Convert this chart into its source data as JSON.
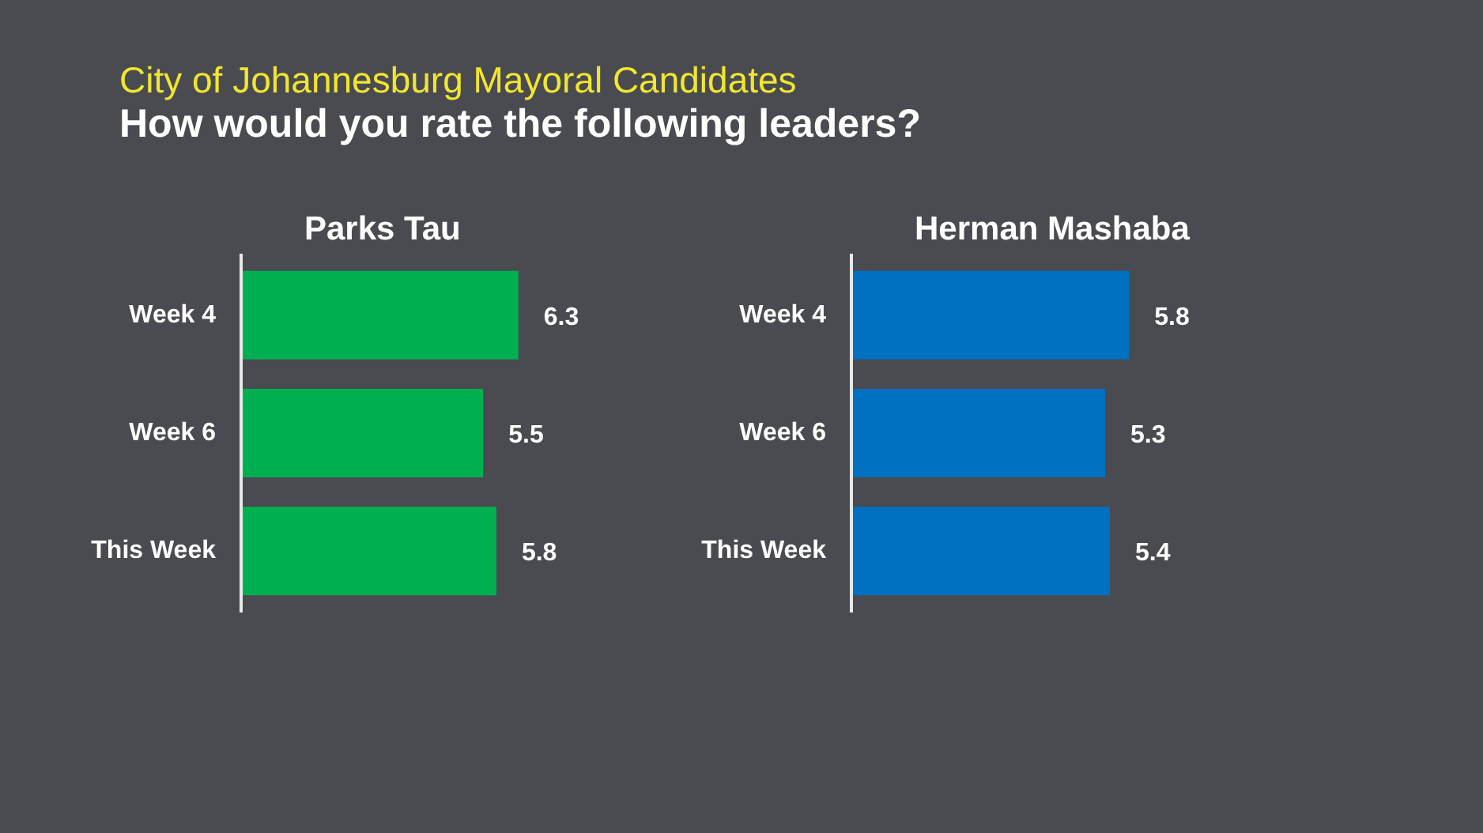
{
  "chart_data": [
    {
      "type": "other",
      "title": "City of Johannesburg Mayoral Candidates",
      "subtitle": "How would you rate the following leaders?"
    },
    {
      "type": "bar",
      "orientation": "horizontal",
      "title": "Parks Tau",
      "categories": [
        "Week 4",
        "Week 6",
        "This Week"
      ],
      "values": [
        6.3,
        5.5,
        5.8
      ],
      "color": "#00b050",
      "data_labels": true,
      "tick_labels": "y"
    },
    {
      "type": "bar",
      "orientation": "horizontal",
      "title": "Herman Mashaba",
      "categories": [
        "Week 4",
        "Week 6",
        "This Week"
      ],
      "values": [
        5.8,
        5.3,
        5.4
      ],
      "color": "#0070c0",
      "data_labels": true,
      "tick_labels": "y"
    }
  ]
}
